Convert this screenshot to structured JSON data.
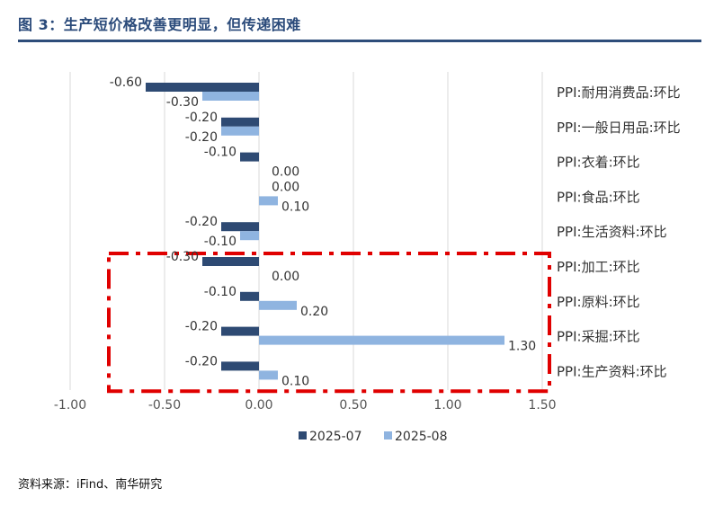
{
  "header": {
    "title": "图 3：生产短价格改善更明显，但传递困难"
  },
  "source": {
    "text": "资料来源：iFind、南华研究"
  },
  "chart_data": {
    "type": "bar",
    "orientation": "horizontal",
    "categories": [
      "PPI:耐用消费品:环比",
      "PPI:一般日用品:环比",
      "PPI:衣着:环比",
      "PPI:食品:环比",
      "PPI:生活资料:环比",
      "PPI:加工:环比",
      "PPI:原料:环比",
      "PPI:采掘:环比",
      "PPI:生产资料:环比"
    ],
    "series": [
      {
        "name": "2025-07",
        "values": [
          -0.6,
          -0.2,
          -0.1,
          0.0,
          -0.2,
          -0.3,
          -0.1,
          -0.2,
          -0.2
        ],
        "labels": [
          "-0.60",
          "-0.20",
          "-0.10",
          "0.00",
          "-0.20",
          "-0.30",
          "-0.10",
          "-0.20",
          "-0.20"
        ],
        "color": "#2e4a73"
      },
      {
        "name": "2025-08",
        "values": [
          -0.3,
          -0.2,
          0.0,
          0.1,
          -0.1,
          0.0,
          0.2,
          1.3,
          0.1
        ],
        "labels": [
          "-0.30",
          "-0.20",
          "0.00",
          "0.10",
          "-0.10",
          "0.00",
          "0.20",
          "1.30",
          "0.10"
        ],
        "color": "#8fb4e0"
      }
    ],
    "xlim": [
      -1.0,
      1.5
    ],
    "xticks": [
      -1.0,
      -0.5,
      0.0,
      0.5,
      1.0,
      1.5
    ],
    "xtick_labels": [
      "-1.00",
      "-0.50",
      "0.00",
      "0.50",
      "1.00",
      "1.50"
    ],
    "grid": true,
    "legend": "bottom",
    "highlight": {
      "categories": [
        "PPI:加工:环比",
        "PPI:原料:环比",
        "PPI:采掘:环比",
        "PPI:生产资料:环比"
      ],
      "style": "red dash-dot box",
      "color": "#e00000"
    }
  }
}
